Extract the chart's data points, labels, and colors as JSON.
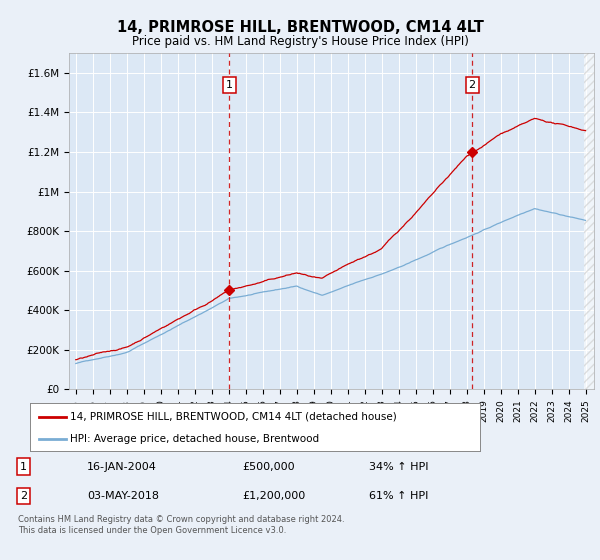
{
  "title": "14, PRIMROSE HILL, BRENTWOOD, CM14 4LT",
  "subtitle": "Price paid vs. HM Land Registry's House Price Index (HPI)",
  "background_color": "#eaf0f8",
  "plot_bg_color": "#dce8f5",
  "ylim": [
    0,
    1700000
  ],
  "yticks": [
    0,
    200000,
    400000,
    600000,
    800000,
    1000000,
    1200000,
    1400000,
    1600000
  ],
  "ytick_labels": [
    "£0",
    "£200K",
    "£400K",
    "£600K",
    "£800K",
    "£1M",
    "£1.2M",
    "£1.4M",
    "£1.6M"
  ],
  "year_start": 1995,
  "year_end": 2025,
  "transaction1_date": 2004.04,
  "transaction1_price": 500000,
  "transaction1_label": "1",
  "transaction1_hpi_pct": "34% ↑ HPI",
  "transaction1_date_str": "16-JAN-2004",
  "transaction2_date": 2018.33,
  "transaction2_price": 1200000,
  "transaction2_label": "2",
  "transaction2_hpi_pct": "61% ↑ HPI",
  "transaction2_date_str": "03-MAY-2018",
  "legend_line1": "14, PRIMROSE HILL, BRENTWOOD, CM14 4LT (detached house)",
  "legend_line2": "HPI: Average price, detached house, Brentwood",
  "footer": "Contains HM Land Registry data © Crown copyright and database right 2024.\nThis data is licensed under the Open Government Licence v3.0.",
  "red_color": "#cc0000",
  "blue_color": "#7aadd4"
}
